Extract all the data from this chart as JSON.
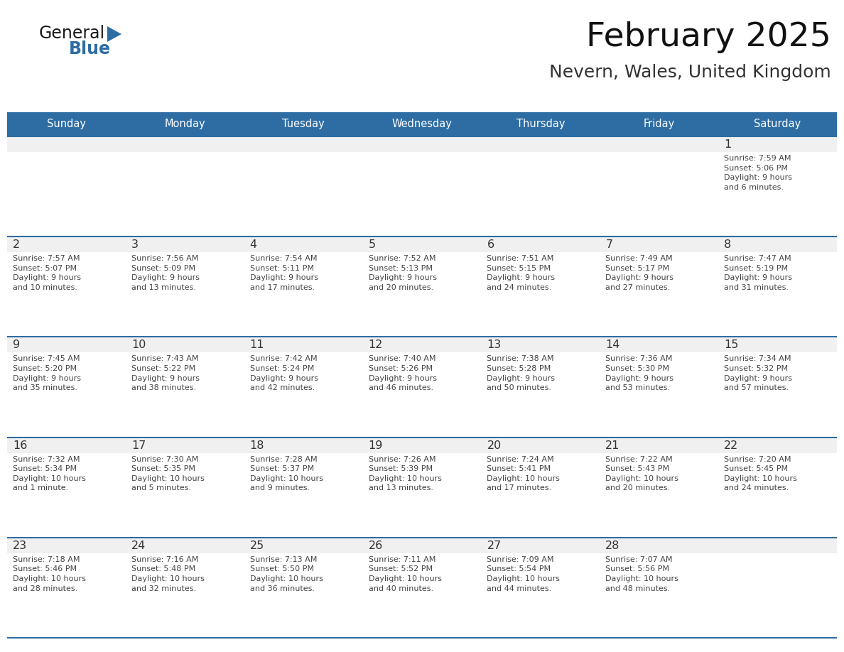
{
  "title": "February 2025",
  "subtitle": "Nevern, Wales, United Kingdom",
  "header_bg": "#2E6DA4",
  "header_text": "#FFFFFF",
  "cell_bg": "#FFFFFF",
  "cell_top_strip": "#F0F0F0",
  "day_num_color": "#333333",
  "text_color": "#444444",
  "line_color": "#2E6DA4",
  "days_of_week": [
    "Sunday",
    "Monday",
    "Tuesday",
    "Wednesday",
    "Thursday",
    "Friday",
    "Saturday"
  ],
  "calendar_data": [
    [
      {
        "day": null,
        "info": null
      },
      {
        "day": null,
        "info": null
      },
      {
        "day": null,
        "info": null
      },
      {
        "day": null,
        "info": null
      },
      {
        "day": null,
        "info": null
      },
      {
        "day": null,
        "info": null
      },
      {
        "day": 1,
        "info": "Sunrise: 7:59 AM\nSunset: 5:06 PM\nDaylight: 9 hours\nand 6 minutes."
      }
    ],
    [
      {
        "day": 2,
        "info": "Sunrise: 7:57 AM\nSunset: 5:07 PM\nDaylight: 9 hours\nand 10 minutes."
      },
      {
        "day": 3,
        "info": "Sunrise: 7:56 AM\nSunset: 5:09 PM\nDaylight: 9 hours\nand 13 minutes."
      },
      {
        "day": 4,
        "info": "Sunrise: 7:54 AM\nSunset: 5:11 PM\nDaylight: 9 hours\nand 17 minutes."
      },
      {
        "day": 5,
        "info": "Sunrise: 7:52 AM\nSunset: 5:13 PM\nDaylight: 9 hours\nand 20 minutes."
      },
      {
        "day": 6,
        "info": "Sunrise: 7:51 AM\nSunset: 5:15 PM\nDaylight: 9 hours\nand 24 minutes."
      },
      {
        "day": 7,
        "info": "Sunrise: 7:49 AM\nSunset: 5:17 PM\nDaylight: 9 hours\nand 27 minutes."
      },
      {
        "day": 8,
        "info": "Sunrise: 7:47 AM\nSunset: 5:19 PM\nDaylight: 9 hours\nand 31 minutes."
      }
    ],
    [
      {
        "day": 9,
        "info": "Sunrise: 7:45 AM\nSunset: 5:20 PM\nDaylight: 9 hours\nand 35 minutes."
      },
      {
        "day": 10,
        "info": "Sunrise: 7:43 AM\nSunset: 5:22 PM\nDaylight: 9 hours\nand 38 minutes."
      },
      {
        "day": 11,
        "info": "Sunrise: 7:42 AM\nSunset: 5:24 PM\nDaylight: 9 hours\nand 42 minutes."
      },
      {
        "day": 12,
        "info": "Sunrise: 7:40 AM\nSunset: 5:26 PM\nDaylight: 9 hours\nand 46 minutes."
      },
      {
        "day": 13,
        "info": "Sunrise: 7:38 AM\nSunset: 5:28 PM\nDaylight: 9 hours\nand 50 minutes."
      },
      {
        "day": 14,
        "info": "Sunrise: 7:36 AM\nSunset: 5:30 PM\nDaylight: 9 hours\nand 53 minutes."
      },
      {
        "day": 15,
        "info": "Sunrise: 7:34 AM\nSunset: 5:32 PM\nDaylight: 9 hours\nand 57 minutes."
      }
    ],
    [
      {
        "day": 16,
        "info": "Sunrise: 7:32 AM\nSunset: 5:34 PM\nDaylight: 10 hours\nand 1 minute."
      },
      {
        "day": 17,
        "info": "Sunrise: 7:30 AM\nSunset: 5:35 PM\nDaylight: 10 hours\nand 5 minutes."
      },
      {
        "day": 18,
        "info": "Sunrise: 7:28 AM\nSunset: 5:37 PM\nDaylight: 10 hours\nand 9 minutes."
      },
      {
        "day": 19,
        "info": "Sunrise: 7:26 AM\nSunset: 5:39 PM\nDaylight: 10 hours\nand 13 minutes."
      },
      {
        "day": 20,
        "info": "Sunrise: 7:24 AM\nSunset: 5:41 PM\nDaylight: 10 hours\nand 17 minutes."
      },
      {
        "day": 21,
        "info": "Sunrise: 7:22 AM\nSunset: 5:43 PM\nDaylight: 10 hours\nand 20 minutes."
      },
      {
        "day": 22,
        "info": "Sunrise: 7:20 AM\nSunset: 5:45 PM\nDaylight: 10 hours\nand 24 minutes."
      }
    ],
    [
      {
        "day": 23,
        "info": "Sunrise: 7:18 AM\nSunset: 5:46 PM\nDaylight: 10 hours\nand 28 minutes."
      },
      {
        "day": 24,
        "info": "Sunrise: 7:16 AM\nSunset: 5:48 PM\nDaylight: 10 hours\nand 32 minutes."
      },
      {
        "day": 25,
        "info": "Sunrise: 7:13 AM\nSunset: 5:50 PM\nDaylight: 10 hours\nand 36 minutes."
      },
      {
        "day": 26,
        "info": "Sunrise: 7:11 AM\nSunset: 5:52 PM\nDaylight: 10 hours\nand 40 minutes."
      },
      {
        "day": 27,
        "info": "Sunrise: 7:09 AM\nSunset: 5:54 PM\nDaylight: 10 hours\nand 44 minutes."
      },
      {
        "day": 28,
        "info": "Sunrise: 7:07 AM\nSunset: 5:56 PM\nDaylight: 10 hours\nand 48 minutes."
      },
      {
        "day": null,
        "info": null
      }
    ]
  ],
  "logo_general_color": "#1a1a1a",
  "logo_blue_color": "#2E6DA4",
  "fig_width": 11.88,
  "fig_height": 9.18
}
